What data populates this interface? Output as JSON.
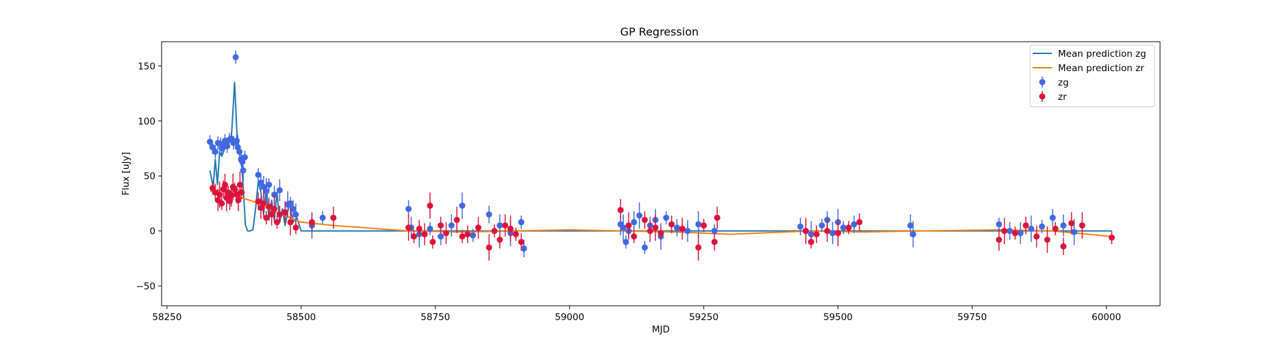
{
  "chart_data": {
    "type": "scatter",
    "title": "GP Regression",
    "xlabel": "MJD",
    "ylabel": "Flux [uJy]",
    "xlim": [
      58240,
      60100
    ],
    "ylim": [
      -68,
      172
    ],
    "xticks": [
      58250,
      58500,
      58750,
      59000,
      59250,
      59500,
      59750,
      60000
    ],
    "yticks": [
      -50,
      0,
      50,
      100,
      150
    ],
    "grid": false,
    "legend_position": "top-right",
    "legend": [
      "Mean prediction zg",
      "Mean prediction zr",
      "zg",
      "zr"
    ],
    "colors": {
      "zg_line": "#1f77b4",
      "zr_line": "#ff7f0e",
      "zg_points": "#4169e1",
      "zr_points": "#dc143c"
    },
    "series": [
      {
        "name": "Mean prediction zg",
        "kind": "line",
        "color": "#1f77b4",
        "x": [
          58330,
          58336,
          58340,
          58344,
          58348,
          58352,
          58358,
          58364,
          58370,
          58376,
          58380,
          58384,
          58388,
          58392,
          58396,
          58400,
          58405,
          58410,
          58415,
          58420,
          58425,
          58430,
          58435,
          58440,
          58445,
          58450,
          58455,
          58460,
          58465,
          58470,
          58478,
          58485,
          58492,
          58500,
          58510,
          58560,
          58700,
          59000,
          59300,
          59440,
          59600,
          59800,
          60010
        ],
        "y": [
          55,
          40,
          65,
          42,
          72,
          68,
          75,
          80,
          85,
          135,
          92,
          75,
          70,
          40,
          6,
          0,
          0,
          1,
          20,
          45,
          35,
          15,
          40,
          10,
          28,
          10,
          35,
          8,
          20,
          5,
          25,
          8,
          12,
          0,
          0,
          0,
          0,
          0,
          0,
          0,
          0,
          0,
          0
        ]
      },
      {
        "name": "Mean prediction zr",
        "kind": "line",
        "color": "#ff7f0e",
        "x": [
          58330,
          58350,
          58370,
          58390,
          58410,
          58430,
          58450,
          58480,
          58500,
          58560,
          58700,
          58800,
          58900,
          59000,
          59100,
          59200,
          59300,
          59400,
          59450,
          59550,
          59650,
          59800,
          59900,
          60010
        ],
        "y": [
          36,
          37,
          35,
          30,
          27,
          22,
          18,
          12,
          8,
          5,
          0,
          -1,
          0,
          1,
          0,
          -1,
          -3,
          -1,
          0,
          -1,
          0,
          1,
          0,
          -5
        ]
      },
      {
        "name": "zg",
        "kind": "errorbar",
        "color": "#4169e1",
        "x": [
          58330,
          58335,
          58340,
          58345,
          58350,
          58352,
          58355,
          58358,
          58362,
          58366,
          58370,
          58374,
          58378,
          58380,
          58382,
          58385,
          58388,
          58390,
          58392,
          58395,
          58420,
          58425,
          58430,
          58435,
          58440,
          58450,
          58460,
          58475,
          58480,
          58485,
          58490,
          58520,
          58540,
          58700,
          58705,
          58720,
          58740,
          58760,
          58780,
          58800,
          58820,
          58850,
          58870,
          58890,
          58910,
          58915,
          59095,
          59100,
          59105,
          59110,
          59120,
          59130,
          59140,
          59150,
          59160,
          59170,
          59180,
          59200,
          59220,
          59240,
          59270,
          59430,
          59440,
          59450,
          59470,
          59480,
          59490,
          59500,
          59510,
          59530,
          59635,
          59640,
          59800,
          59820,
          59840,
          59860,
          59880,
          59900,
          59920,
          59940
        ],
        "y": [
          81,
          76,
          72,
          80,
          79,
          75,
          78,
          82,
          77,
          83,
          84,
          80,
          158,
          82,
          76,
          72,
          65,
          63,
          55,
          67,
          51,
          44,
          40,
          36,
          42,
          33,
          37,
          24,
          25,
          20,
          15,
          5,
          12,
          20,
          3,
          -3,
          2,
          -5,
          5,
          23,
          -4,
          15,
          5,
          -2,
          8,
          -16,
          6,
          3,
          -10,
          0,
          8,
          14,
          -15,
          5,
          10,
          -5,
          12,
          3,
          0,
          6,
          0,
          4,
          0,
          -3,
          5,
          10,
          -2,
          8,
          3,
          6,
          5,
          -3,
          6,
          0,
          -2,
          2,
          4,
          12,
          5,
          -1
        ]
      },
      {
        "name": "zr",
        "kind": "errorbar",
        "color": "#dc143c",
        "x": [
          58335,
          58340,
          58345,
          58348,
          58352,
          58355,
          58358,
          58361,
          58364,
          58367,
          58370,
          58373,
          58376,
          58380,
          58383,
          58386,
          58389,
          58420,
          58425,
          58430,
          58435,
          58440,
          58445,
          58450,
          58455,
          58460,
          58470,
          58480,
          58490,
          58520,
          58560,
          58700,
          58710,
          58720,
          58730,
          58740,
          58745,
          58760,
          58770,
          58790,
          58800,
          58810,
          58830,
          58850,
          58860,
          58870,
          58880,
          58890,
          58900,
          58910,
          59095,
          59110,
          59120,
          59140,
          59150,
          59160,
          59170,
          59190,
          59210,
          59240,
          59250,
          59270,
          59275,
          59440,
          59450,
          59460,
          59480,
          59500,
          59520,
          59540,
          59800,
          59810,
          59830,
          59850,
          59870,
          59890,
          59905,
          59920,
          59935,
          59955,
          60010
        ],
        "y": [
          39,
          35,
          28,
          33,
          25,
          38,
          42,
          30,
          35,
          27,
          32,
          40,
          38,
          33,
          28,
          42,
          35,
          27,
          21,
          25,
          12,
          22,
          15,
          20,
          8,
          15,
          17,
          8,
          3,
          8,
          12,
          3,
          -5,
          2,
          -3,
          23,
          -10,
          5,
          -2,
          10,
          -5,
          -3,
          3,
          -15,
          0,
          -8,
          5,
          2,
          -3,
          -10,
          19,
          5,
          -5,
          10,
          0,
          3,
          -2,
          6,
          2,
          -15,
          5,
          -10,
          12,
          0,
          -10,
          -3,
          0,
          -2,
          3,
          8,
          -8,
          0,
          -2,
          5,
          -5,
          -8,
          2,
          -14,
          7,
          5,
          -6
        ]
      }
    ]
  }
}
